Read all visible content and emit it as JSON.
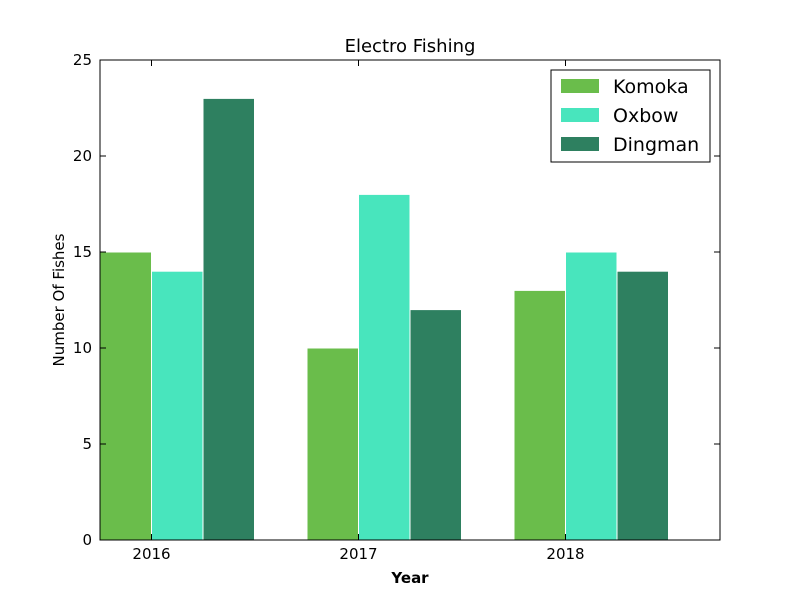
{
  "chart_data": {
    "type": "bar",
    "title": "Electro Fishing",
    "xlabel": "Year",
    "ylabel": "Number Of Fishes",
    "categories": [
      "2016",
      "2017",
      "2018"
    ],
    "series": [
      {
        "name": "Komoka",
        "color": "#6abd4b",
        "values": [
          15,
          10,
          13
        ]
      },
      {
        "name": "Oxbow",
        "color": "#48e5bd",
        "values": [
          14,
          18,
          15
        ]
      },
      {
        "name": "Dingman",
        "color": "#2e8060",
        "values": [
          23,
          12,
          14
        ]
      }
    ],
    "ylim": [
      0,
      25
    ],
    "yticks": [
      0,
      5,
      10,
      15,
      20,
      25
    ],
    "grid": false,
    "legend_position": "top-right"
  }
}
